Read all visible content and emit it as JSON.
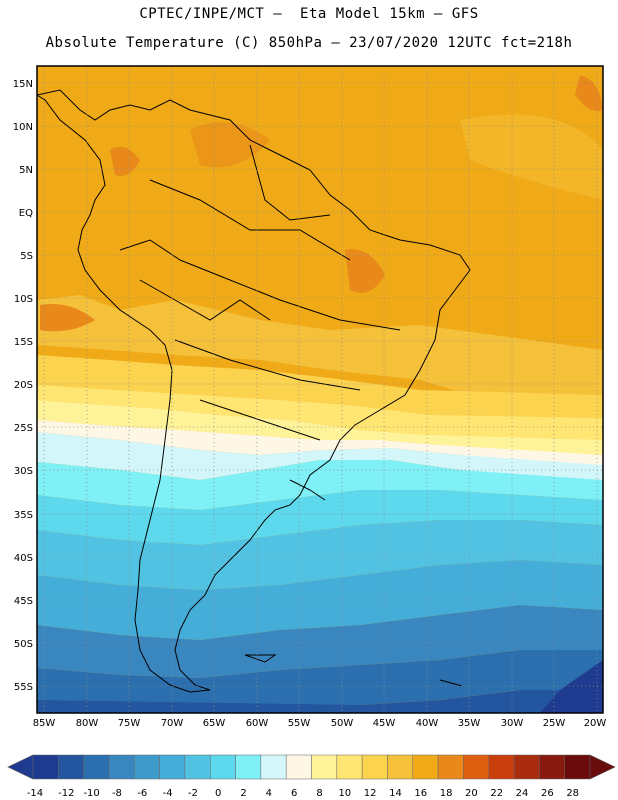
{
  "header": {
    "line1": "CPTEC/INPE/MCT –  Eta Model 15km – GFS",
    "line2": "Absolute Temperature (C) 850hPa – 23/07/2020 12UTC fct=218h"
  },
  "map": {
    "latitude_labels": [
      "15N",
      "10N",
      "5N",
      "EQ",
      "5S",
      "10S",
      "15S",
      "20S",
      "25S",
      "30S",
      "35S",
      "40S",
      "45S",
      "50S",
      "55S"
    ],
    "longitude_labels": [
      "85W",
      "80W",
      "75W",
      "70W",
      "65W",
      "60W",
      "55W",
      "50W",
      "45W",
      "40W",
      "35W",
      "30W",
      "25W",
      "20W"
    ],
    "lat_range": [
      17,
      -58
    ],
    "lon_range": [
      -86,
      -20.5
    ]
  },
  "colorbar": {
    "labels": [
      "-14",
      "-12",
      "-10",
      "-8",
      "-6",
      "-4",
      "-2",
      "0",
      "2",
      "4",
      "6",
      "8",
      "10",
      "12",
      "14",
      "16",
      "18",
      "20",
      "22",
      "24",
      "26",
      "28"
    ],
    "colors": [
      "#1f3b8f",
      "#2456a0",
      "#2c6fae",
      "#3a86bf",
      "#3d9acb",
      "#45aed8",
      "#52c2e2",
      "#5ed8ec",
      "#7ff0f6",
      "#d3f6fa",
      "#fff7e6",
      "#fff39a",
      "#ffe571",
      "#fbd34f",
      "#f5c13a",
      "#f0aa18",
      "#e8891a",
      "#df5f10",
      "#c93e0c",
      "#a92c0e",
      "#87190f",
      "#6b0c0c"
    ]
  }
}
